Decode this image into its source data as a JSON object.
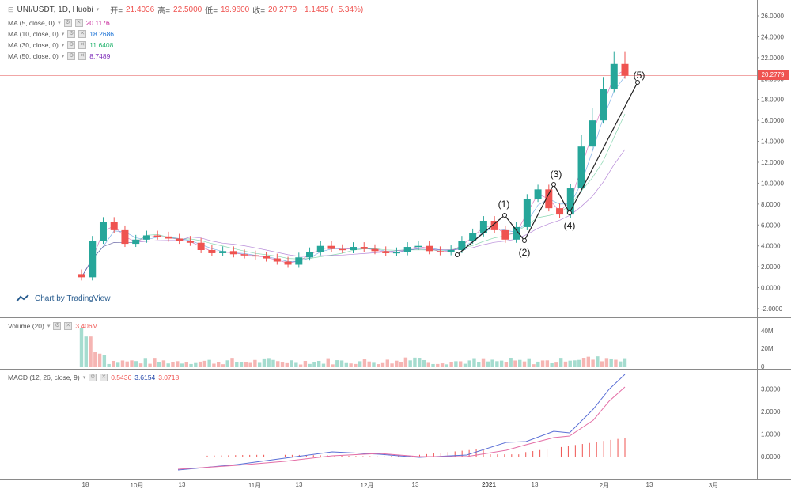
{
  "header": {
    "symbol": "UNI/USDT, 1D, Huobi",
    "open_label": "开=",
    "open": "21.4036",
    "high_label": "高=",
    "high": "22.5000",
    "low_label": "低=",
    "low": "19.9600",
    "close_label": "收=",
    "close": "20.2779",
    "change": "−1.1435 (−5.34%)"
  },
  "ma_legend": [
    {
      "label": "MA (5, close, 0)",
      "value": "20.1176",
      "color": "#c00f8f"
    },
    {
      "label": "MA (10, close, 0)",
      "value": "18.2686",
      "color": "#1a72d6"
    },
    {
      "label": "MA (30, close, 0)",
      "value": "11.6408",
      "color": "#2bb673"
    },
    {
      "label": "MA (50, close, 0)",
      "value": "8.7489",
      "color": "#7b2ab8"
    }
  ],
  "price_axis": [
    "26.0000",
    "24.0000",
    "22.0000",
    "20.0000",
    "18.0000",
    "16.0000",
    "14.0000",
    "12.0000",
    "10.0000",
    "8.0000",
    "6.0000",
    "4.0000",
    "2.0000",
    "0.0000",
    "-2.0000"
  ],
  "last_price": "20.2779",
  "watermark": "Chart by TradingView",
  "volume": {
    "label": "Volume (20)",
    "value": "3.406M",
    "axis": [
      "40M",
      "20M",
      "0"
    ]
  },
  "macd": {
    "label": "MACD (12, 26, close, 9)",
    "v1": "0.5436",
    "v2": "3.6154",
    "v3": "3.0718",
    "axis": [
      "3.0000",
      "2.0000",
      "1.0000",
      "0.0000"
    ]
  },
  "time_axis": [
    "18",
    "10月",
    "13",
    "11月",
    "13",
    "12月",
    "13",
    "2021",
    "13",
    "2月",
    "13",
    "3月",
    "13"
  ],
  "waves": [
    "(1)",
    "(2)",
    "(3)",
    "(4)",
    "(5)"
  ],
  "colors": {
    "up": "#26a69a",
    "down": "#ef5350",
    "up_vol": "#a5dccf",
    "down_vol": "#f5b5b3",
    "grid": "#ffffff"
  },
  "chart_data": {
    "type": "candlestick",
    "title": "UNI/USDT, 1D, Huobi",
    "ylim": [
      -2,
      26
    ],
    "series": [
      {
        "name": "UNI/USDT",
        "close": [
          1.0,
          4.5,
          6.3,
          5.5,
          4.2,
          4.6,
          5.0,
          4.9,
          4.7,
          4.5,
          4.3,
          3.6,
          3.3,
          3.5,
          3.2,
          3.1,
          3.0,
          2.8,
          2.5,
          2.2,
          2.9,
          3.4,
          4.0,
          3.7,
          3.6,
          3.9,
          3.7,
          3.5,
          3.3,
          3.4,
          3.9,
          4.0,
          3.5,
          3.4,
          3.6,
          4.5,
          5.2,
          6.4,
          5.5,
          4.6,
          5.8,
          8.5,
          9.4,
          7.6,
          7.0,
          9.5,
          13.5,
          16.0,
          19.0,
          21.4,
          20.28
        ]
      }
    ]
  }
}
